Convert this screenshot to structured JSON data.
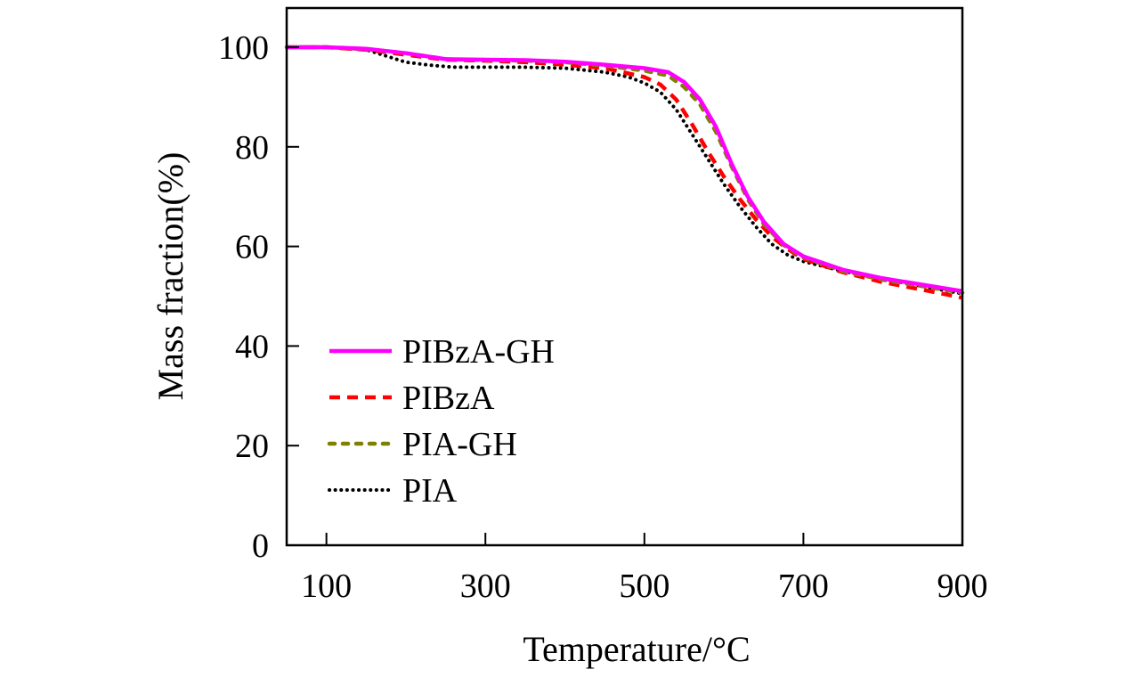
{
  "chart_data": {
    "type": "line",
    "title": "",
    "xlabel": "Temperature/°C",
    "ylabel": "Mass fraction(%)",
    "xlim": [
      50,
      900
    ],
    "ylim": [
      0,
      108
    ],
    "xticks": [
      100,
      300,
      500,
      700,
      900
    ],
    "xtick_labels": [
      "100",
      "300",
      "500",
      "700",
      "900"
    ],
    "yticks": [
      0,
      20,
      40,
      60,
      80,
      100
    ],
    "ytick_labels": [
      "0",
      "20",
      "40",
      "60",
      "80",
      "100"
    ],
    "grid": false,
    "legend_position": "lower-left",
    "series": [
      {
        "name": "PIBzA-GH",
        "color": "#ff00ff",
        "style": "solid",
        "points": [
          [
            50,
            100
          ],
          [
            100,
            100
          ],
          [
            150,
            99.7
          ],
          [
            200,
            98.8
          ],
          [
            250,
            97.6
          ],
          [
            300,
            97.5
          ],
          [
            350,
            97.4
          ],
          [
            400,
            97.1
          ],
          [
            450,
            96.5
          ],
          [
            500,
            95.8
          ],
          [
            530,
            95.0
          ],
          [
            550,
            93.0
          ],
          [
            570,
            89.5
          ],
          [
            590,
            84.0
          ],
          [
            610,
            76.5
          ],
          [
            630,
            70.0
          ],
          [
            650,
            65.0
          ],
          [
            675,
            60.5
          ],
          [
            700,
            58.0
          ],
          [
            750,
            55.3
          ],
          [
            800,
            53.6
          ],
          [
            850,
            52.3
          ],
          [
            900,
            51.0
          ]
        ]
      },
      {
        "name": "PIBzA",
        "color": "#ff0000",
        "style": "dashed",
        "points": [
          [
            50,
            100
          ],
          [
            100,
            100
          ],
          [
            150,
            99.5
          ],
          [
            200,
            98.5
          ],
          [
            250,
            97.5
          ],
          [
            300,
            97.3
          ],
          [
            350,
            97.0
          ],
          [
            400,
            96.5
          ],
          [
            450,
            95.8
          ],
          [
            500,
            94.0
          ],
          [
            520,
            92.5
          ],
          [
            540,
            89.5
          ],
          [
            560,
            84.5
          ],
          [
            580,
            79.0
          ],
          [
            600,
            74.0
          ],
          [
            620,
            69.5
          ],
          [
            640,
            65.5
          ],
          [
            660,
            62.0
          ],
          [
            680,
            59.5
          ],
          [
            700,
            57.5
          ],
          [
            750,
            54.8
          ],
          [
            800,
            52.8
          ],
          [
            850,
            51.3
          ],
          [
            900,
            49.7
          ]
        ]
      },
      {
        "name": "PIA-GH",
        "color": "#808000",
        "style": "dashed-small",
        "points": [
          [
            50,
            100
          ],
          [
            100,
            100
          ],
          [
            150,
            99.6
          ],
          [
            200,
            98.8
          ],
          [
            250,
            97.6
          ],
          [
            300,
            97.4
          ],
          [
            350,
            97.3
          ],
          [
            400,
            97.0
          ],
          [
            450,
            96.3
          ],
          [
            500,
            95.3
          ],
          [
            530,
            94.3
          ],
          [
            550,
            92.0
          ],
          [
            570,
            88.5
          ],
          [
            590,
            83.0
          ],
          [
            610,
            76.0
          ],
          [
            630,
            69.5
          ],
          [
            650,
            64.5
          ],
          [
            675,
            60.3
          ],
          [
            700,
            57.8
          ],
          [
            750,
            55.0
          ],
          [
            800,
            53.3
          ],
          [
            850,
            52.0
          ],
          [
            900,
            50.7
          ]
        ]
      },
      {
        "name": "PIA",
        "color": "#000000",
        "style": "dotted",
        "points": [
          [
            50,
            100
          ],
          [
            100,
            100
          ],
          [
            150,
            99.5
          ],
          [
            180,
            98.0
          ],
          [
            200,
            97.0
          ],
          [
            230,
            96.4
          ],
          [
            260,
            96.0
          ],
          [
            300,
            96.0
          ],
          [
            350,
            96.0
          ],
          [
            400,
            95.8
          ],
          [
            450,
            95.0
          ],
          [
            480,
            94.0
          ],
          [
            500,
            92.8
          ],
          [
            520,
            91.0
          ],
          [
            540,
            87.5
          ],
          [
            560,
            82.5
          ],
          [
            580,
            77.5
          ],
          [
            600,
            72.5
          ],
          [
            620,
            68.0
          ],
          [
            640,
            64.0
          ],
          [
            660,
            60.5
          ],
          [
            680,
            58.3
          ],
          [
            700,
            57.0
          ],
          [
            750,
            55.0
          ],
          [
            800,
            53.5
          ],
          [
            850,
            52.0
          ],
          [
            900,
            50.5
          ]
        ]
      }
    ]
  }
}
